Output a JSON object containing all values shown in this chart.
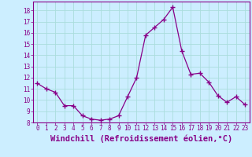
{
  "x": [
    0,
    1,
    2,
    3,
    4,
    5,
    6,
    7,
    8,
    9,
    10,
    11,
    12,
    13,
    14,
    15,
    16,
    17,
    18,
    19,
    20,
    21,
    22,
    23
  ],
  "y": [
    11.5,
    11.0,
    10.7,
    9.5,
    9.5,
    8.6,
    8.3,
    8.2,
    8.3,
    8.6,
    10.3,
    12.0,
    15.8,
    16.5,
    17.2,
    18.3,
    14.4,
    12.3,
    12.4,
    11.6,
    10.4,
    9.8,
    10.3,
    9.6
  ],
  "xlabel": "Windchill (Refroidissement éolien,°C)",
  "xlim": [
    -0.5,
    23.5
  ],
  "ylim": [
    8,
    18.8
  ],
  "yticks": [
    8,
    9,
    10,
    11,
    12,
    13,
    14,
    15,
    16,
    17,
    18
  ],
  "xticks": [
    0,
    1,
    2,
    3,
    4,
    5,
    6,
    7,
    8,
    9,
    10,
    11,
    12,
    13,
    14,
    15,
    16,
    17,
    18,
    19,
    20,
    21,
    22,
    23
  ],
  "line_color": "#880088",
  "marker": "+",
  "bg_color": "#cceeff",
  "grid_color": "#aadddd",
  "tick_label_fontsize": 5.5,
  "xlabel_fontsize": 7.5
}
